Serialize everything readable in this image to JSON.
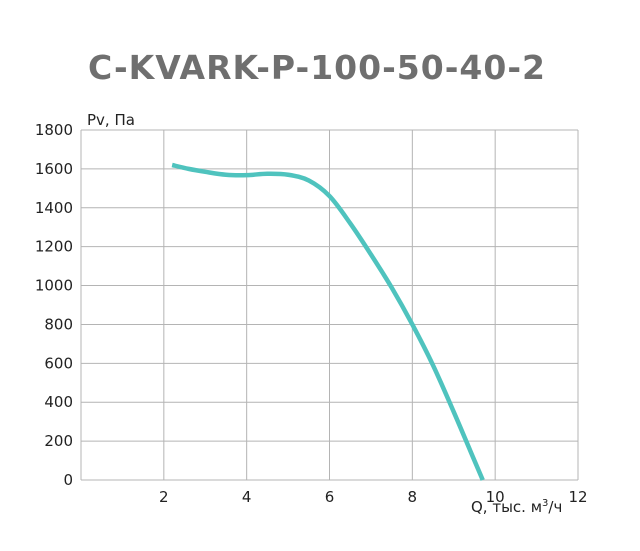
{
  "chart_data": {
    "type": "line",
    "title": "C-KVARK-P-100-50-40-2",
    "ylabel": "Pv, Па",
    "xlabel_main": "Q, тыс. м",
    "xlabel_sup": "3",
    "xlabel_tail": "/ч",
    "xlim": [
      0,
      12
    ],
    "ylim": [
      0,
      1800
    ],
    "x_ticks": [
      2,
      4,
      6,
      8,
      10,
      12
    ],
    "y_ticks": [
      0,
      200,
      400,
      600,
      800,
      1000,
      1200,
      1400,
      1600,
      1800
    ],
    "grid": true,
    "series": [
      {
        "color": "#4fc3be",
        "x": [
          2.2,
          2.6,
          3.0,
          3.5,
          4.0,
          4.5,
          5.0,
          5.5,
          6.0,
          6.5,
          7.0,
          7.5,
          8.0,
          8.5,
          9.0,
          9.4,
          9.7
        ],
        "y": [
          1620,
          1600,
          1585,
          1570,
          1568,
          1575,
          1570,
          1540,
          1460,
          1320,
          1160,
          990,
          800,
          590,
          350,
          150,
          0
        ]
      }
    ]
  }
}
